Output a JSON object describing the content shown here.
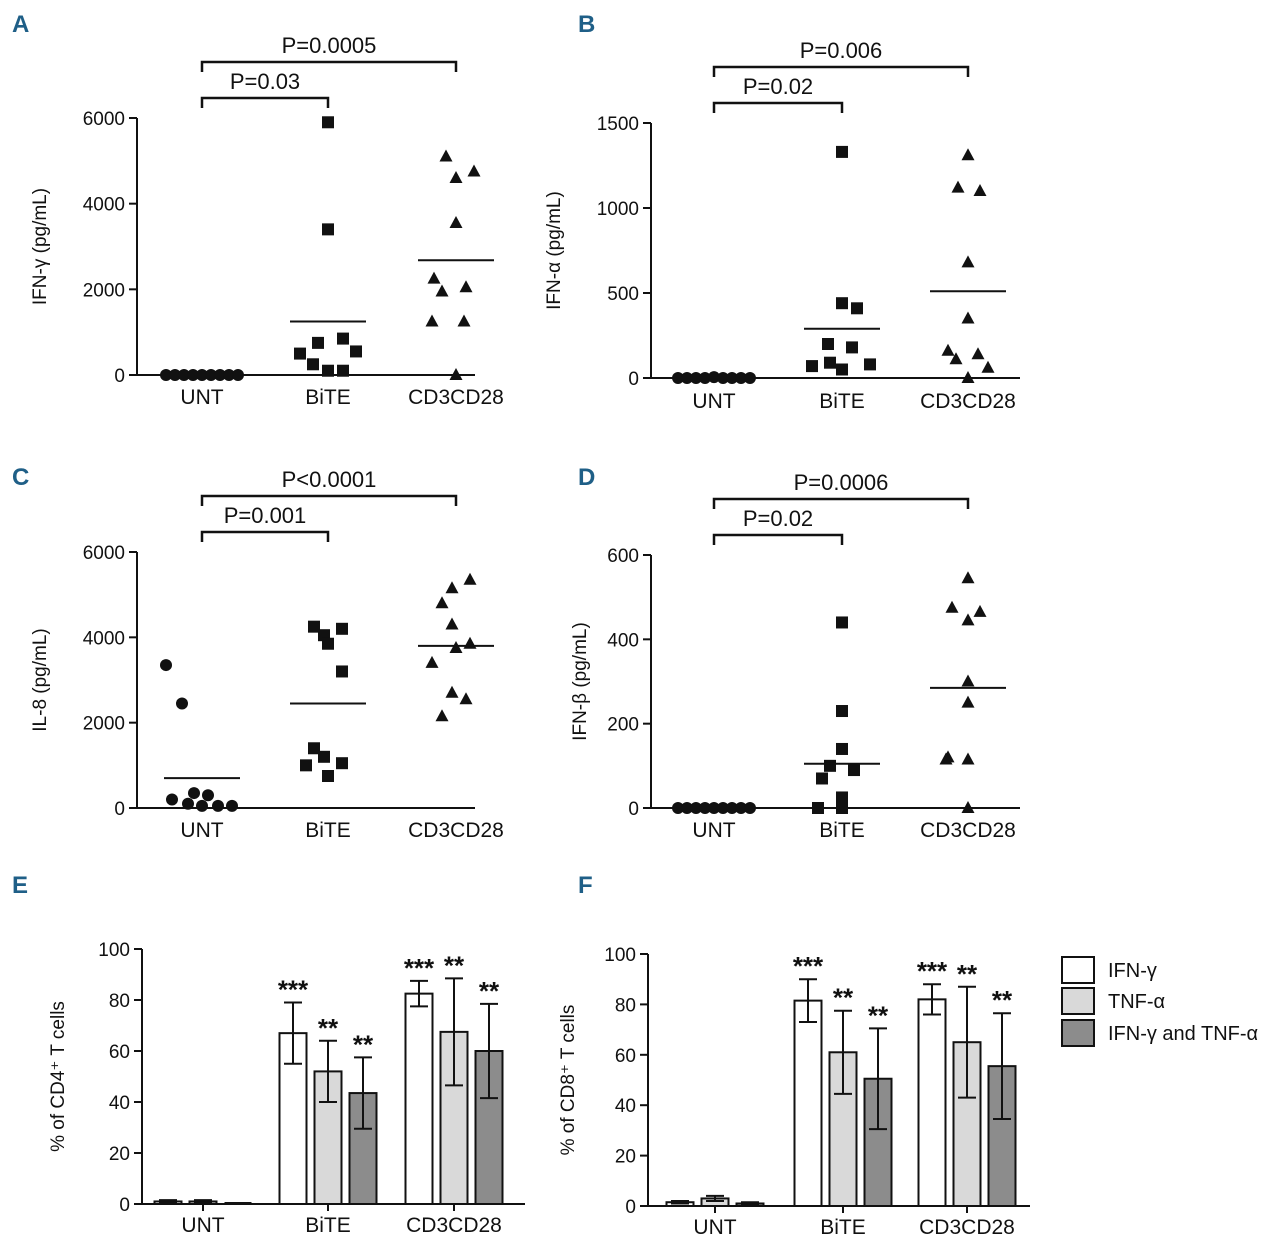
{
  "colors": {
    "panel_letter": "#1f5f87",
    "ifn_gamma": "#ffffff",
    "tnf_alpha": "#d9d9d9",
    "ifn_gamma_tnf_alpha": "#8c8c8c",
    "ink": "#111111"
  },
  "legend": {
    "items": [
      {
        "label": "IFN-γ",
        "color": "#ffffff"
      },
      {
        "label": "TNF-α",
        "color": "#d9d9d9"
      },
      {
        "label": "IFN-γ and TNF-α",
        "color": "#8c8c8c"
      }
    ]
  },
  "chart_data": [
    {
      "panel": "A",
      "type": "scatter",
      "ylabel": "IFN-γ (pg/mL)",
      "ylim": [
        0,
        6000
      ],
      "yticks": [
        0,
        2000,
        4000,
        6000
      ],
      "categories": [
        "UNT",
        "BiTE",
        "CD3CD28"
      ],
      "groups": [
        {
          "name": "UNT",
          "marker": "circle",
          "mean": 0,
          "values": [
            0,
            0,
            0,
            0,
            0,
            0,
            0,
            0,
            0
          ]
        },
        {
          "name": "BiTE",
          "marker": "square",
          "mean": 1250,
          "values": [
            5900,
            3400,
            850,
            750,
            550,
            500,
            250,
            100,
            100
          ]
        },
        {
          "name": "CD3CD28",
          "marker": "triangle",
          "mean": 2680,
          "values": [
            5100,
            4750,
            4600,
            3550,
            2250,
            2050,
            1950,
            1250,
            1250,
            0
          ]
        }
      ],
      "comparisons": [
        {
          "label": "P=0.03",
          "from": "UNT",
          "to": "BiTE"
        },
        {
          "label": "P=0.0005",
          "from": "UNT",
          "to": "CD3CD28"
        }
      ]
    },
    {
      "panel": "B",
      "type": "scatter",
      "ylabel": "IFN-α (pg/mL)",
      "ylim": [
        0,
        1500
      ],
      "yticks": [
        0,
        500,
        1000,
        1500
      ],
      "categories": [
        "UNT",
        "BiTE",
        "CD3CD28"
      ],
      "groups": [
        {
          "name": "UNT",
          "marker": "circle",
          "mean": 0,
          "values": [
            0,
            0,
            0,
            0,
            5,
            0,
            0,
            0,
            0
          ]
        },
        {
          "name": "BiTE",
          "marker": "square",
          "mean": 290,
          "values": [
            1330,
            440,
            410,
            200,
            180,
            90,
            80,
            70,
            50
          ]
        },
        {
          "name": "CD3CD28",
          "marker": "triangle",
          "mean": 510,
          "values": [
            1310,
            1120,
            1100,
            680,
            350,
            160,
            140,
            110,
            60,
            0
          ]
        }
      ],
      "comparisons": [
        {
          "label": "P=0.02",
          "from": "UNT",
          "to": "BiTE"
        },
        {
          "label": "P=0.006",
          "from": "UNT",
          "to": "CD3CD28"
        }
      ]
    },
    {
      "panel": "C",
      "type": "scatter",
      "ylabel": "IL-8 (pg/mL)",
      "ylim": [
        0,
        6000
      ],
      "yticks": [
        0,
        2000,
        4000,
        6000
      ],
      "categories": [
        "UNT",
        "BiTE",
        "CD3CD28"
      ],
      "groups": [
        {
          "name": "UNT",
          "marker": "circle",
          "mean": 700,
          "values": [
            3350,
            2450,
            350,
            300,
            200,
            100,
            50,
            50,
            50
          ]
        },
        {
          "name": "BiTE",
          "marker": "square",
          "mean": 2450,
          "values": [
            4250,
            4200,
            4050,
            3850,
            3200,
            1400,
            1200,
            1050,
            1000,
            750
          ]
        },
        {
          "name": "CD3CD28",
          "marker": "triangle",
          "mean": 3800,
          "values": [
            5350,
            5150,
            4800,
            4300,
            3850,
            3750,
            3400,
            2700,
            2550,
            2150
          ]
        }
      ],
      "comparisons": [
        {
          "label": "P=0.001",
          "from": "UNT",
          "to": "BiTE"
        },
        {
          "label": "P<0.0001",
          "from": "UNT",
          "to": "CD3CD28"
        }
      ]
    },
    {
      "panel": "D",
      "type": "scatter",
      "ylabel": "IFN-β (pg/mL)",
      "ylim": [
        0,
        600
      ],
      "yticks": [
        0,
        200,
        400,
        600
      ],
      "categories": [
        "UNT",
        "BiTE",
        "CD3CD28"
      ],
      "groups": [
        {
          "name": "UNT",
          "marker": "circle",
          "mean": 0,
          "values": [
            0,
            0,
            0,
            0,
            0,
            0,
            0,
            0,
            0
          ]
        },
        {
          "name": "BiTE",
          "marker": "square",
          "mean": 105,
          "values": [
            440,
            230,
            140,
            100,
            90,
            70,
            25,
            0,
            0
          ]
        },
        {
          "name": "CD3CD28",
          "marker": "triangle",
          "mean": 285,
          "values": [
            545,
            475,
            465,
            445,
            300,
            250,
            120,
            115,
            115,
            0
          ]
        }
      ],
      "comparisons": [
        {
          "label": "P=0.02",
          "from": "UNT",
          "to": "BiTE"
        },
        {
          "label": "P=0.0006",
          "from": "UNT",
          "to": "CD3CD28"
        }
      ]
    },
    {
      "panel": "E",
      "type": "bar",
      "ylabel": "% of CD4⁺ T cells",
      "ylim": [
        0,
        100
      ],
      "yticks": [
        0,
        20,
        40,
        60,
        80,
        100
      ],
      "categories": [
        "UNT",
        "BiTE",
        "CD3CD28"
      ],
      "series": [
        {
          "name": "IFN-γ",
          "values": [
            1,
            67,
            82.5
          ],
          "errors": [
            0.5,
            12,
            5
          ],
          "stars": [
            "",
            "***",
            "***"
          ]
        },
        {
          "name": "TNF-α",
          "values": [
            1,
            52,
            67.5
          ],
          "errors": [
            0.5,
            12,
            21
          ],
          "stars": [
            "",
            "**",
            "**"
          ]
        },
        {
          "name": "IFN-γ and TNF-α",
          "values": [
            0,
            43.5,
            60
          ],
          "errors": [
            0,
            14,
            18.5
          ],
          "stars": [
            "",
            "**",
            "**"
          ]
        }
      ]
    },
    {
      "panel": "F",
      "type": "bar",
      "ylabel": "% of CD8⁺ T cells",
      "ylim": [
        0,
        100
      ],
      "yticks": [
        0,
        20,
        40,
        60,
        80,
        100
      ],
      "categories": [
        "UNT",
        "BiTE",
        "CD3CD28"
      ],
      "series": [
        {
          "name": "IFN-γ",
          "values": [
            1.5,
            81.5,
            82
          ],
          "errors": [
            0.5,
            8.5,
            6
          ],
          "stars": [
            "",
            "***",
            "***"
          ]
        },
        {
          "name": "TNF-α",
          "values": [
            3,
            61,
            65
          ],
          "errors": [
            1,
            16.5,
            22
          ],
          "stars": [
            "",
            "**",
            "**"
          ]
        },
        {
          "name": "IFN-γ and TNF-α",
          "values": [
            1,
            50.5,
            55.5
          ],
          "errors": [
            0.5,
            20,
            21
          ],
          "stars": [
            "",
            "**",
            "**"
          ]
        }
      ]
    }
  ]
}
